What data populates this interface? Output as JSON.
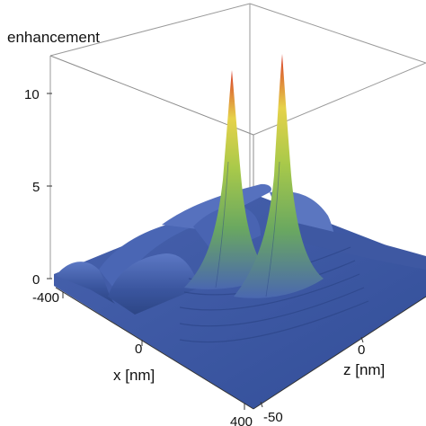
{
  "chart_data": {
    "type": "surface3d",
    "zlabel": "enhancement",
    "xlabel": "x [nm]",
    "ylabel": "z [nm]",
    "z_ticks": [
      "0",
      "5",
      "10"
    ],
    "x_ticks": [
      "-400",
      "0",
      "400"
    ],
    "y_ticks": [
      "0",
      "-50"
    ],
    "zlim": [
      0,
      12
    ],
    "xlim": [
      -400,
      400
    ],
    "ylim": [
      -50,
      50
    ],
    "peaks": [
      {
        "x": -20,
        "z": 0,
        "enhancement": 11.5
      },
      {
        "x": 20,
        "z": 0,
        "enhancement": 11.5
      }
    ],
    "baseline_enhancement": 1,
    "ridge_positions_x": [
      -400,
      -260,
      -100,
      100
    ],
    "surface_color": "#3d5aa8",
    "peak_color": "#d93b2b",
    "mid_color": "#e8d44a",
    "green_color": "#7fbd4a"
  }
}
